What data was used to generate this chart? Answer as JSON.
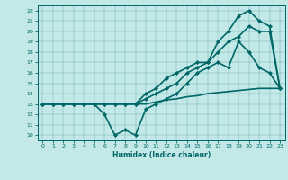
{
  "xlabel": "Humidex (Indice chaleur)",
  "bg_color": "#c2e8e8",
  "line_color": "#006666",
  "xlim": [
    -0.5,
    23.5
  ],
  "ylim": [
    9.5,
    22.5
  ],
  "xticks": [
    0,
    1,
    2,
    3,
    4,
    5,
    6,
    7,
    8,
    9,
    10,
    11,
    12,
    13,
    14,
    15,
    16,
    17,
    18,
    19,
    20,
    21,
    22,
    23
  ],
  "yticks": [
    10,
    11,
    12,
    13,
    14,
    15,
    16,
    17,
    18,
    19,
    20,
    21,
    22
  ],
  "series": [
    {
      "x": [
        0,
        1,
        2,
        3,
        4,
        5,
        6,
        7,
        8,
        9,
        10,
        11,
        12,
        13,
        14,
        15,
        16,
        17,
        18,
        19,
        20,
        21,
        22,
        23
      ],
      "y": [
        13,
        13,
        13,
        13,
        13,
        13,
        13,
        13,
        13,
        13,
        13,
        13.2,
        13.4,
        13.5,
        13.7,
        13.8,
        14,
        14.1,
        14.2,
        14.3,
        14.4,
        14.5,
        14.5,
        14.5
      ],
      "marker": null,
      "lw": 1.2
    },
    {
      "x": [
        0,
        1,
        2,
        3,
        4,
        5,
        6,
        7,
        8,
        9,
        10,
        11,
        12,
        13,
        14,
        15,
        16,
        17,
        18,
        19,
        20,
        21,
        22,
        23
      ],
      "y": [
        13,
        13,
        13,
        13,
        13,
        13,
        12,
        10,
        10.5,
        10,
        12.5,
        13,
        13.5,
        14,
        15,
        16,
        16.5,
        17,
        16.5,
        19,
        18,
        16.5,
        16,
        14.5
      ],
      "marker": "D",
      "lw": 1.2
    },
    {
      "x": [
        0,
        1,
        2,
        3,
        4,
        5,
        6,
        7,
        8,
        9,
        10,
        11,
        12,
        13,
        14,
        15,
        16,
        17,
        18,
        19,
        20,
        21,
        22,
        23
      ],
      "y": [
        13,
        13,
        13,
        13,
        13,
        13,
        13,
        13,
        13,
        13,
        13.5,
        14,
        14.5,
        15,
        16,
        16.5,
        17,
        18,
        19,
        19.5,
        20.5,
        20,
        20,
        14.5
      ],
      "marker": "D",
      "lw": 1.2
    },
    {
      "x": [
        0,
        1,
        2,
        3,
        4,
        5,
        6,
        7,
        8,
        9,
        10,
        11,
        12,
        13,
        14,
        15,
        16,
        17,
        18,
        19,
        20,
        21,
        22,
        23
      ],
      "y": [
        13,
        13,
        13,
        13,
        13,
        13,
        13,
        13,
        13,
        13,
        14,
        14.5,
        15.5,
        16,
        16.5,
        17,
        17,
        19,
        20,
        21.5,
        22,
        21,
        20.5,
        14.5
      ],
      "marker": "D",
      "lw": 1.2
    }
  ]
}
